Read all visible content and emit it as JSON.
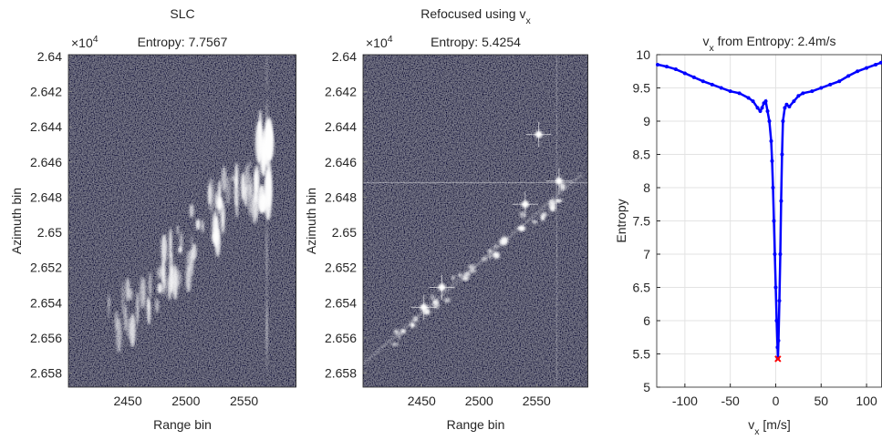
{
  "chart_data": [
    {
      "type": "image",
      "title": [
        "SLC"
      ],
      "subtitle": "Entropy: 7.7567",
      "xlabel": "Range bin",
      "ylabel": "Azimuth bin",
      "y_exponent": [
        "×10",
        "4"
      ],
      "xlim": [
        2399,
        2595
      ],
      "ylim": [
        2.6399,
        2.6588
      ],
      "y_reversed": true,
      "xticks": [
        2450,
        2500,
        2550
      ],
      "yticks": [
        2.64,
        2.642,
        2.644,
        2.646,
        2.648,
        2.65,
        2.652,
        2.654,
        2.656,
        2.658
      ]
    },
    {
      "type": "image",
      "title": [
        "Refocused using v",
        "x"
      ],
      "subtitle": "Entropy: 5.4254",
      "xlabel": "Range bin",
      "ylabel": "Azimuth bin",
      "y_exponent": [
        "×10",
        "4"
      ],
      "xlim": [
        2399,
        2595
      ],
      "ylim": [
        2.6399,
        2.6588
      ],
      "y_reversed": true,
      "xticks": [
        2450,
        2500,
        2550
      ],
      "yticks": [
        2.64,
        2.642,
        2.644,
        2.646,
        2.648,
        2.65,
        2.652,
        2.654,
        2.656,
        2.658
      ]
    },
    {
      "type": "line",
      "title": [
        "v",
        "x",
        " from Entropy: 2.4m/s"
      ],
      "xlabel": [
        "v",
        "x",
        " [m/s]"
      ],
      "ylabel": "Entropy",
      "xlim": [
        -131,
        117
      ],
      "ylim": [
        5,
        10
      ],
      "grid": true,
      "xticks": [
        -100,
        -50,
        0,
        50,
        100
      ],
      "yticks": [
        5,
        5.5,
        6,
        6.5,
        7,
        7.5,
        8,
        8.5,
        9,
        9.5,
        10
      ],
      "series": [
        {
          "color": "#0000ff",
          "marker": "o",
          "x": [
            -130,
            -120,
            -110,
            -100,
            -90,
            -80,
            -70,
            -60,
            -50,
            -40,
            -30,
            -25,
            -20,
            -17,
            -15,
            -13,
            -11,
            -9,
            -7,
            -5,
            -4,
            -3,
            -2,
            -1,
            0,
            1,
            2,
            2.4,
            3,
            4,
            5,
            6,
            7,
            8,
            10,
            12,
            15,
            20,
            25,
            30,
            40,
            50,
            60,
            70,
            80,
            90,
            100,
            110,
            116
          ],
          "values": [
            9.85,
            9.82,
            9.78,
            9.72,
            9.66,
            9.6,
            9.55,
            9.5,
            9.45,
            9.42,
            9.35,
            9.3,
            9.2,
            9.15,
            9.2,
            9.27,
            9.3,
            9.15,
            9,
            8.7,
            8.4,
            8,
            7.5,
            7,
            6.5,
            6,
            5.6,
            5.43,
            5.7,
            6.3,
            7,
            7.8,
            8.5,
            9,
            9.2,
            9.25,
            9.22,
            9.3,
            9.38,
            9.42,
            9.45,
            9.5,
            9.55,
            9.6,
            9.68,
            9.75,
            9.8,
            9.85,
            9.88
          ]
        },
        {
          "color": "#ff0000",
          "marker": "x",
          "x": [
            2.4
          ],
          "values": [
            5.4254
          ]
        }
      ]
    }
  ]
}
